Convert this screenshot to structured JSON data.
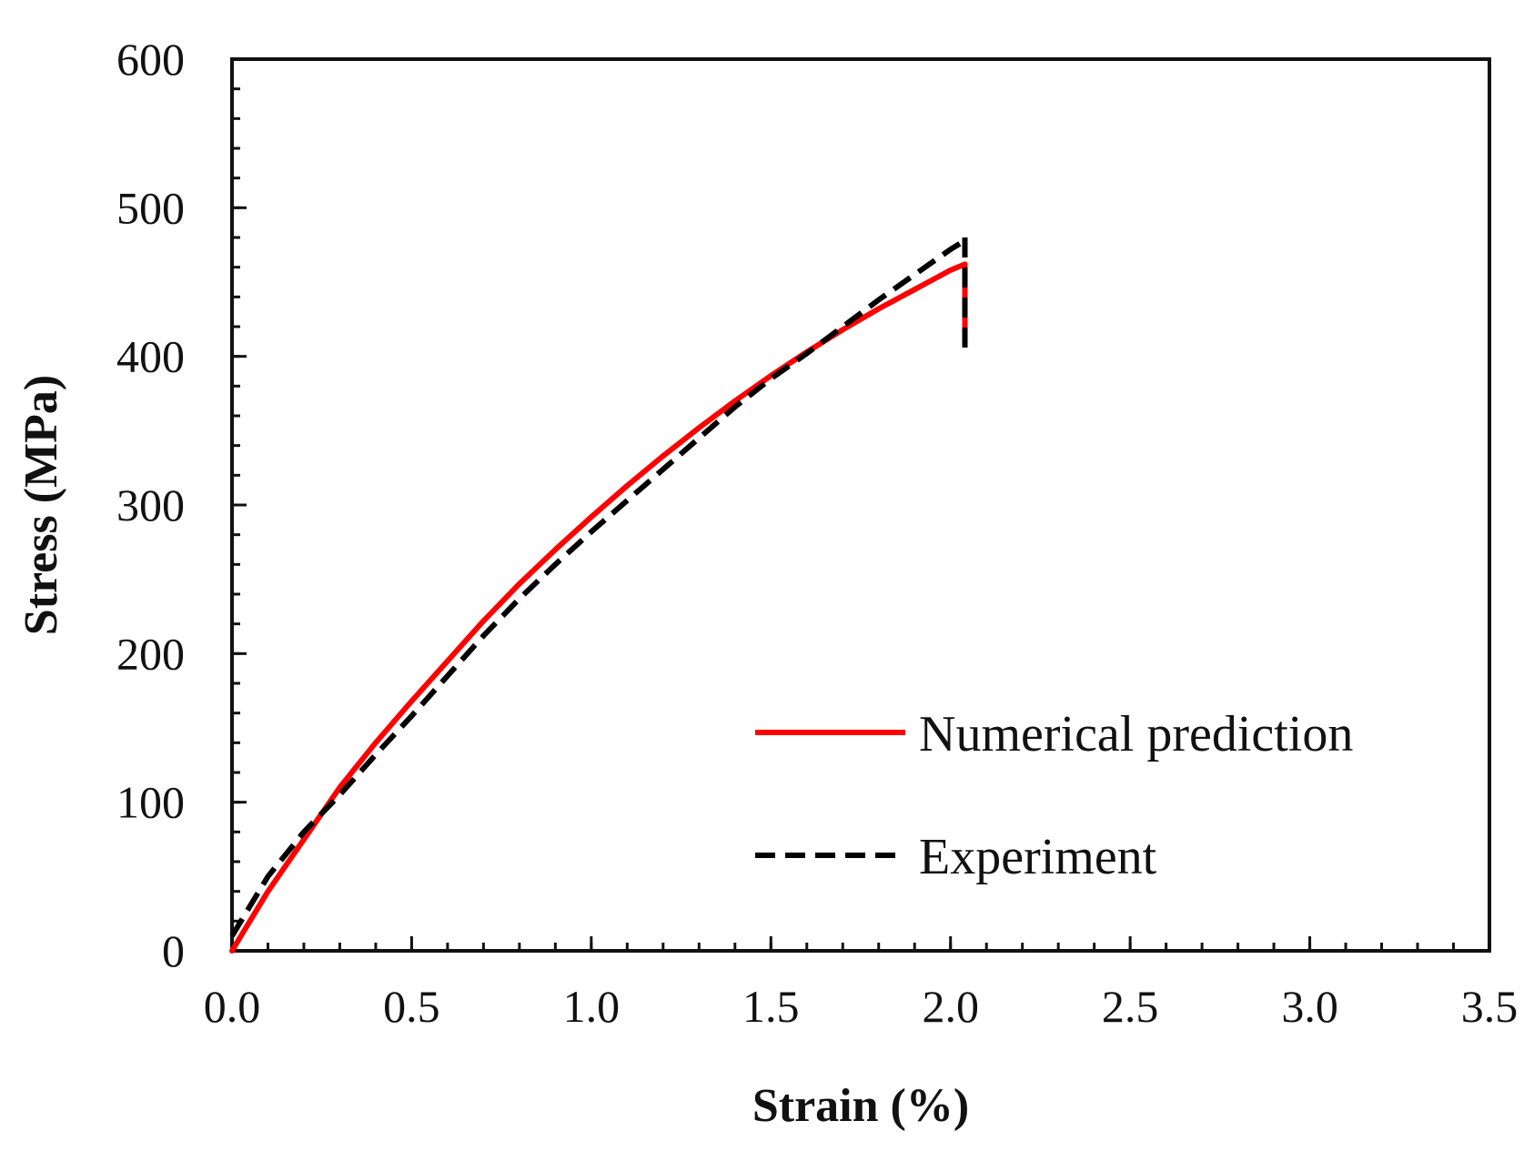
{
  "chart_data": {
    "type": "line",
    "title": "",
    "xlabel": "Strain (%)",
    "ylabel": "Stress (MPa)",
    "xlim": [
      0.0,
      3.5
    ],
    "ylim": [
      0,
      600
    ],
    "x_ticks": [
      0.0,
      0.5,
      1.0,
      1.5,
      2.0,
      2.5,
      3.0,
      3.5
    ],
    "x_tick_labels": [
      "0.0",
      "0.5",
      "1.0",
      "1.5",
      "2.0",
      "2.5",
      "3.0",
      "3.5"
    ],
    "y_ticks": [
      0,
      100,
      200,
      300,
      400,
      500,
      600
    ],
    "y_tick_labels": [
      "0",
      "100",
      "200",
      "300",
      "400",
      "500",
      "600"
    ],
    "x_minor_step": 0.1,
    "y_minor_step": 20,
    "grid": false,
    "legend_position": "bottom-right",
    "series": [
      {
        "name": "Numerical prediction",
        "style": "solid",
        "color": "#ff0000",
        "x": [
          0.0,
          0.05,
          0.1,
          0.2,
          0.3,
          0.4,
          0.5,
          0.6,
          0.7,
          0.8,
          0.9,
          1.0,
          1.1,
          1.2,
          1.3,
          1.4,
          1.5,
          1.6,
          1.7,
          1.8,
          1.9,
          2.0,
          2.04
        ],
        "y": [
          0,
          20,
          40,
          75,
          110,
          140,
          168,
          195,
          222,
          247,
          270,
          292,
          313,
          333,
          352,
          370,
          387,
          403,
          418,
          432,
          445,
          458,
          462
        ]
      },
      {
        "name": "Experiment",
        "style": "dashed",
        "color": "#000000",
        "x": [
          0.0,
          0.05,
          0.1,
          0.2,
          0.3,
          0.4,
          0.5,
          0.6,
          0.7,
          0.8,
          0.9,
          1.0,
          1.1,
          1.2,
          1.3,
          1.4,
          1.5,
          1.6,
          1.7,
          1.8,
          1.9,
          2.0,
          2.04
        ],
        "y": [
          10,
          30,
          50,
          80,
          105,
          132,
          158,
          185,
          212,
          237,
          260,
          282,
          303,
          324,
          345,
          366,
          385,
          402,
          420,
          438,
          455,
          472,
          478
        ]
      }
    ],
    "failure_drop": {
      "x": 2.04,
      "y_top": 480,
      "y_bottom": 400
    }
  }
}
